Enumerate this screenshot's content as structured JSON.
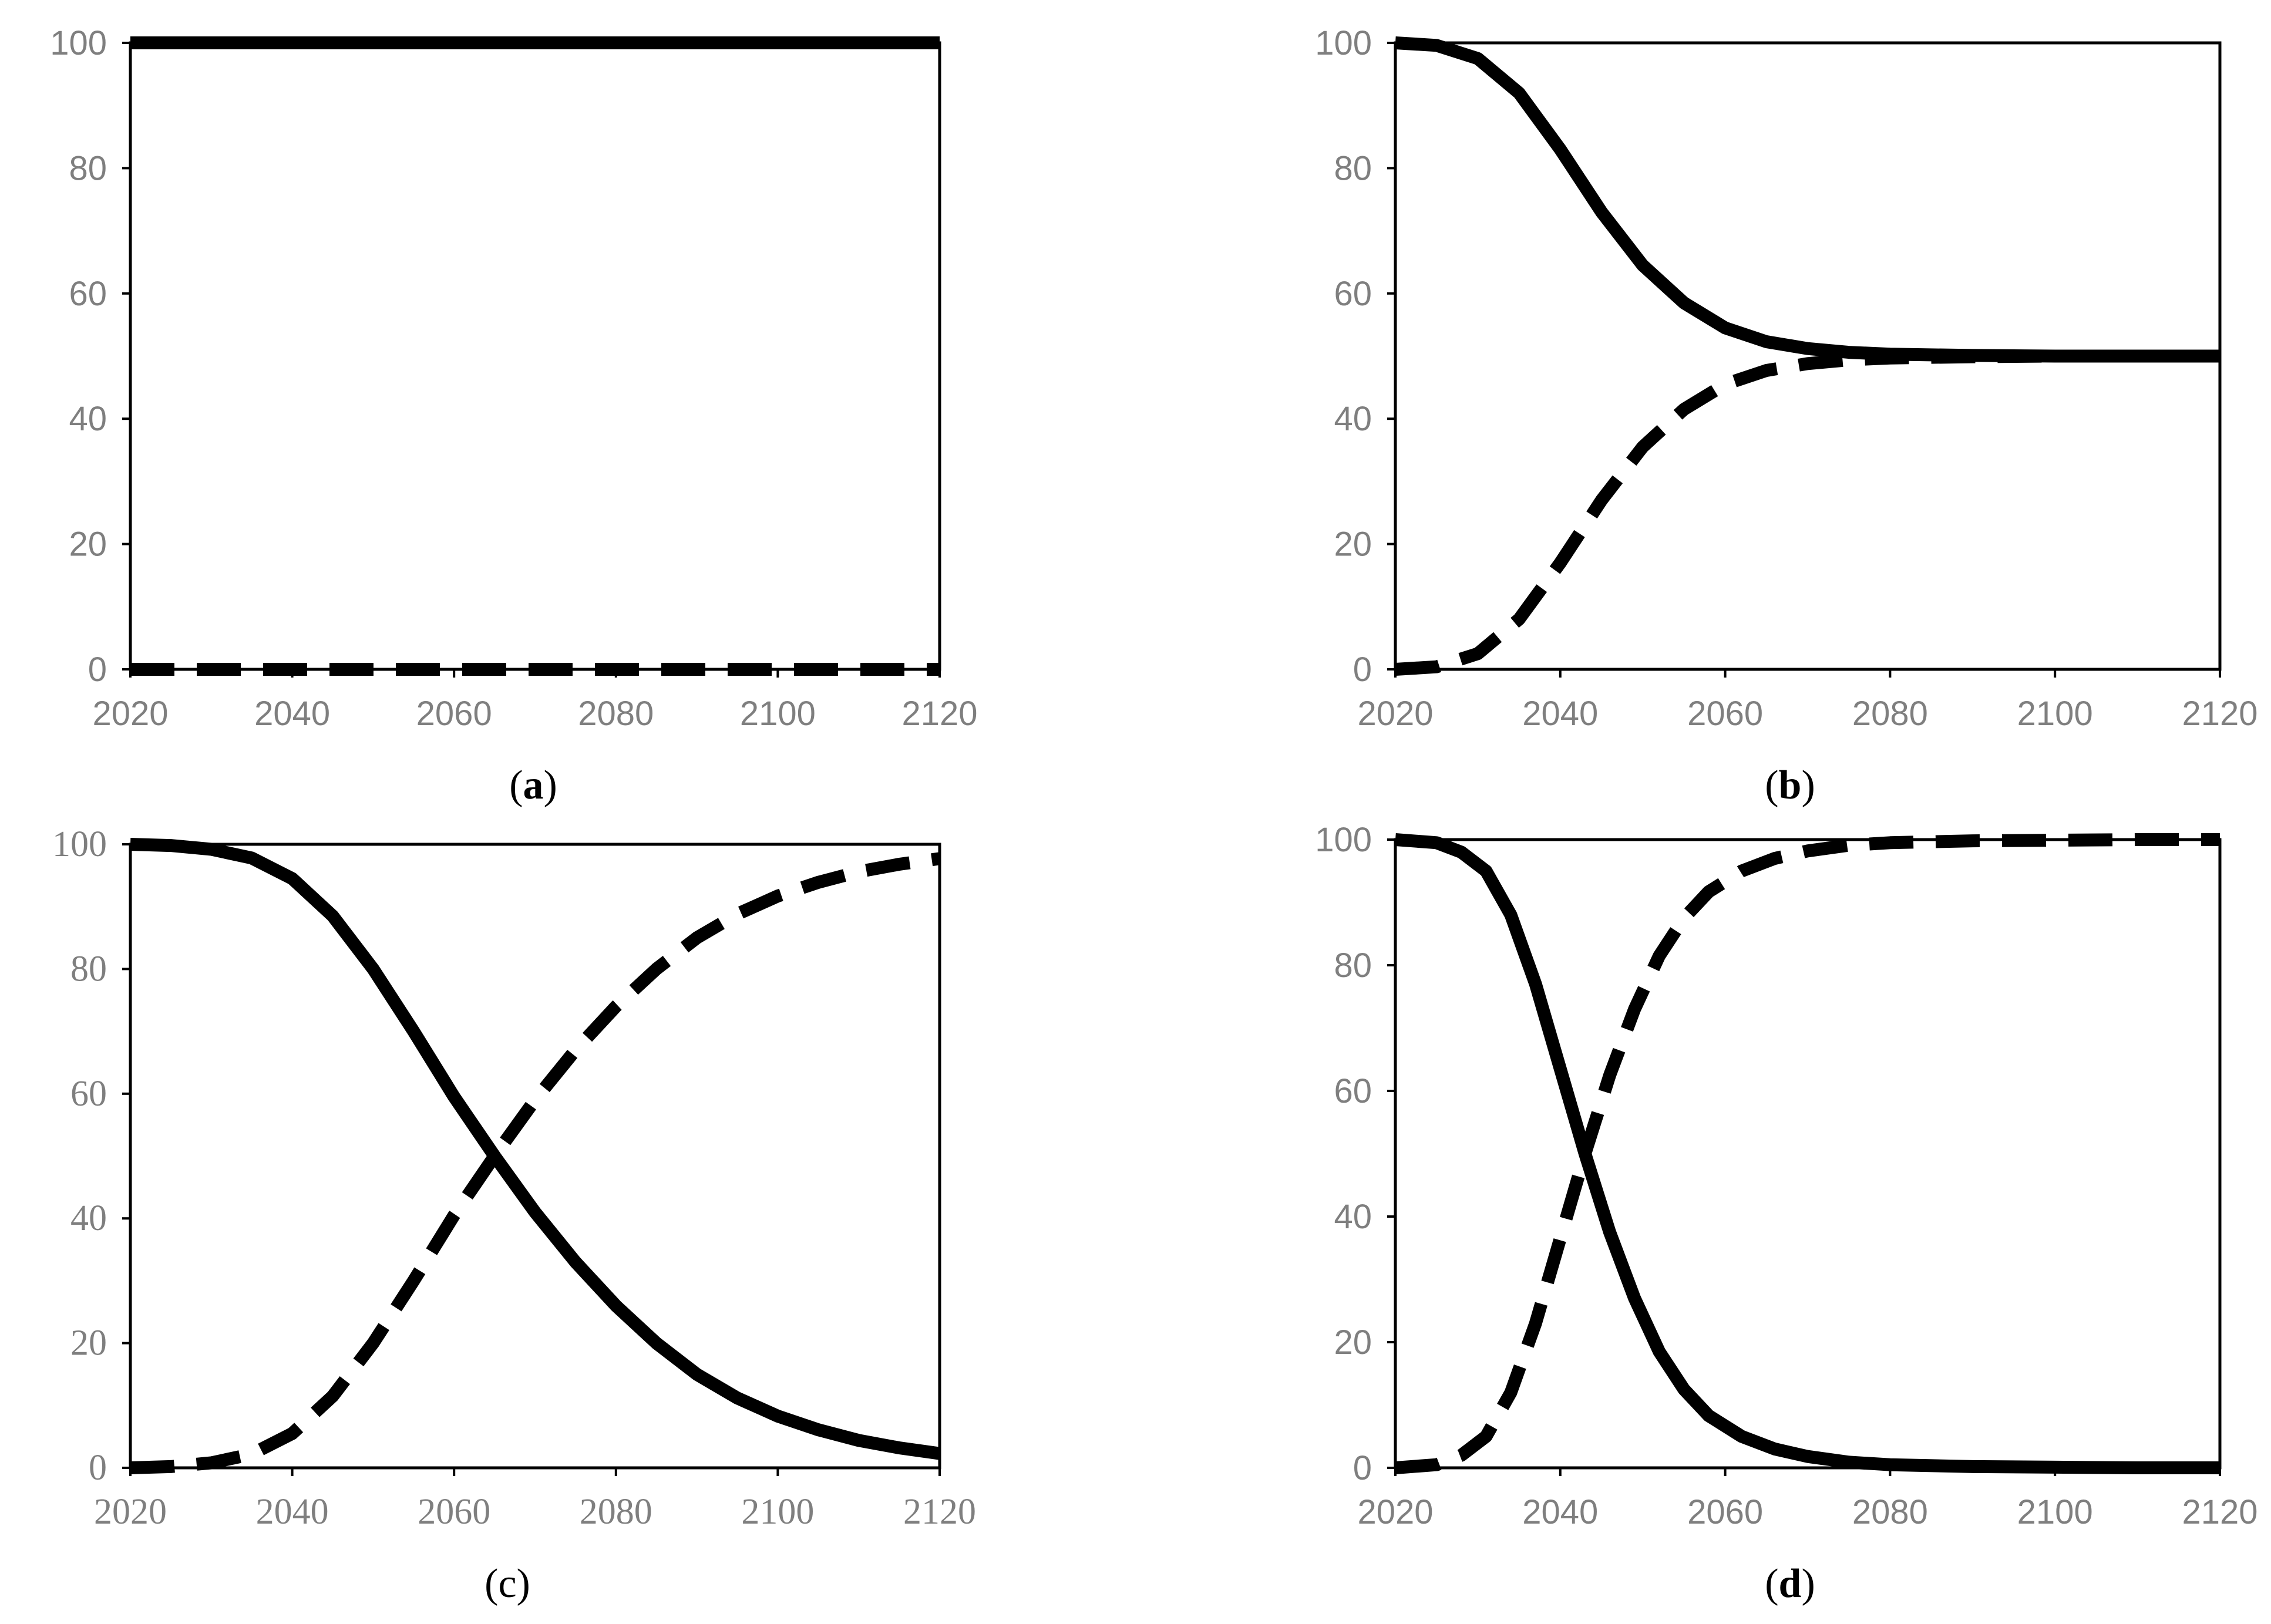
{
  "chart_data": [
    {
      "type": "line",
      "panel_label": {
        "open": "(",
        "letter": "a",
        "close": ")",
        "bold_letter": true
      },
      "x_ticks": [
        2020,
        2040,
        2060,
        2080,
        2100,
        2120
      ],
      "y_ticks": [
        0,
        20,
        40,
        60,
        80,
        100
      ],
      "xlim": [
        2020,
        2120
      ],
      "ylim": [
        0,
        100
      ],
      "grid": false,
      "legend": "none",
      "series": [
        {
          "style": "solid",
          "x": [
            2020,
            2040,
            2060,
            2080,
            2100,
            2120
          ],
          "y": [
            100,
            100,
            100,
            100,
            100,
            100
          ]
        },
        {
          "style": "dashed",
          "x": [
            2020,
            2040,
            2060,
            2080,
            2100,
            2120
          ],
          "y": [
            0,
            0,
            0,
            0,
            0,
            0
          ]
        }
      ]
    },
    {
      "type": "line",
      "panel_label": {
        "open": "(",
        "letter": "b",
        "close": ")",
        "bold_letter": true
      },
      "x_ticks": [
        2020,
        2040,
        2060,
        2080,
        2100,
        2120
      ],
      "y_ticks": [
        0,
        20,
        40,
        60,
        80,
        100
      ],
      "xlim": [
        2020,
        2120
      ],
      "ylim": [
        0,
        100
      ],
      "grid": false,
      "legend": "none",
      "series": [
        {
          "style": "solid",
          "x": [
            2020,
            2025,
            2030,
            2035,
            2040,
            2045,
            2050,
            2055,
            2060,
            2065,
            2070,
            2075,
            2080,
            2090,
            2100,
            2110,
            2120
          ],
          "y": [
            100,
            99.6,
            97.5,
            92,
            83,
            73,
            64.5,
            58.5,
            54.5,
            52.3,
            51.2,
            50.6,
            50.3,
            50.1,
            50,
            50,
            50
          ]
        },
        {
          "style": "dashed",
          "x": [
            2020,
            2025,
            2030,
            2035,
            2040,
            2045,
            2050,
            2055,
            2060,
            2065,
            2070,
            2075,
            2080,
            2090,
            2100,
            2110,
            2120
          ],
          "y": [
            0,
            0.4,
            2.5,
            8,
            17,
            27,
            35.5,
            41.5,
            45.5,
            47.7,
            48.8,
            49.4,
            49.7,
            49.9,
            50,
            50,
            50
          ]
        }
      ]
    },
    {
      "type": "line",
      "panel_label": {
        "open": "(",
        "letter": "c",
        "close": ")",
        "bold_letter": false
      },
      "x_ticks": [
        2020,
        2040,
        2060,
        2080,
        2100,
        2120
      ],
      "y_ticks": [
        0,
        20,
        40,
        60,
        80,
        100
      ],
      "xlim": [
        2020,
        2120
      ],
      "ylim": [
        0,
        100
      ],
      "grid": false,
      "legend": "none",
      "series": [
        {
          "style": "solid",
          "x": [
            2020,
            2025,
            2030,
            2035,
            2040,
            2045,
            2050,
            2055,
            2060,
            2065,
            2070,
            2075,
            2080,
            2085,
            2090,
            2095,
            2100,
            2105,
            2110,
            2115,
            2120
          ],
          "y": [
            100,
            99.8,
            99.2,
            97.8,
            94.5,
            88.5,
            80,
            70,
            59.5,
            50,
            41,
            33,
            26,
            20,
            15,
            11.2,
            8.3,
            6.1,
            4.4,
            3.2,
            2.3
          ]
        },
        {
          "style": "dashed",
          "x": [
            2020,
            2025,
            2030,
            2035,
            2040,
            2045,
            2050,
            2055,
            2060,
            2065,
            2070,
            2075,
            2080,
            2085,
            2090,
            2095,
            2100,
            2105,
            2110,
            2115,
            2120
          ],
          "y": [
            0,
            0.2,
            0.8,
            2.2,
            5.5,
            11.5,
            20,
            30,
            40.5,
            50,
            59,
            67,
            74,
            80,
            85,
            88.8,
            91.7,
            93.9,
            95.6,
            96.8,
            97.7
          ]
        }
      ]
    },
    {
      "type": "line",
      "panel_label": {
        "open": "(",
        "letter": "d",
        "close": ")",
        "bold_letter": true
      },
      "x_ticks": [
        2020,
        2040,
        2060,
        2080,
        2100,
        2120
      ],
      "y_ticks": [
        0,
        20,
        40,
        60,
        80,
        100
      ],
      "xlim": [
        2020,
        2120
      ],
      "ylim": [
        0,
        100
      ],
      "grid": false,
      "legend": "none",
      "series": [
        {
          "style": "solid",
          "x": [
            2020,
            2025,
            2028,
            2031,
            2034,
            2037,
            2040,
            2043,
            2046,
            2049,
            2052,
            2055,
            2058,
            2062,
            2066,
            2070,
            2075,
            2080,
            2090,
            2100,
            2110,
            2120
          ],
          "y": [
            100,
            99.5,
            98,
            95,
            88,
            77,
            63.5,
            50,
            37.5,
            27,
            18.5,
            12.5,
            8.3,
            5,
            3,
            1.8,
            0.9,
            0.5,
            0.2,
            0.1,
            0,
            0
          ]
        },
        {
          "style": "dashed",
          "x": [
            2020,
            2025,
            2028,
            2031,
            2034,
            2037,
            2040,
            2043,
            2046,
            2049,
            2052,
            2055,
            2058,
            2062,
            2066,
            2070,
            2075,
            2080,
            2090,
            2100,
            2110,
            2120
          ],
          "y": [
            0,
            0.5,
            2,
            5,
            12,
            23,
            36.5,
            50,
            62.5,
            73,
            81.5,
            87.5,
            91.7,
            95,
            97,
            98.2,
            99.1,
            99.5,
            99.8,
            99.9,
            100,
            100
          ]
        }
      ]
    }
  ]
}
